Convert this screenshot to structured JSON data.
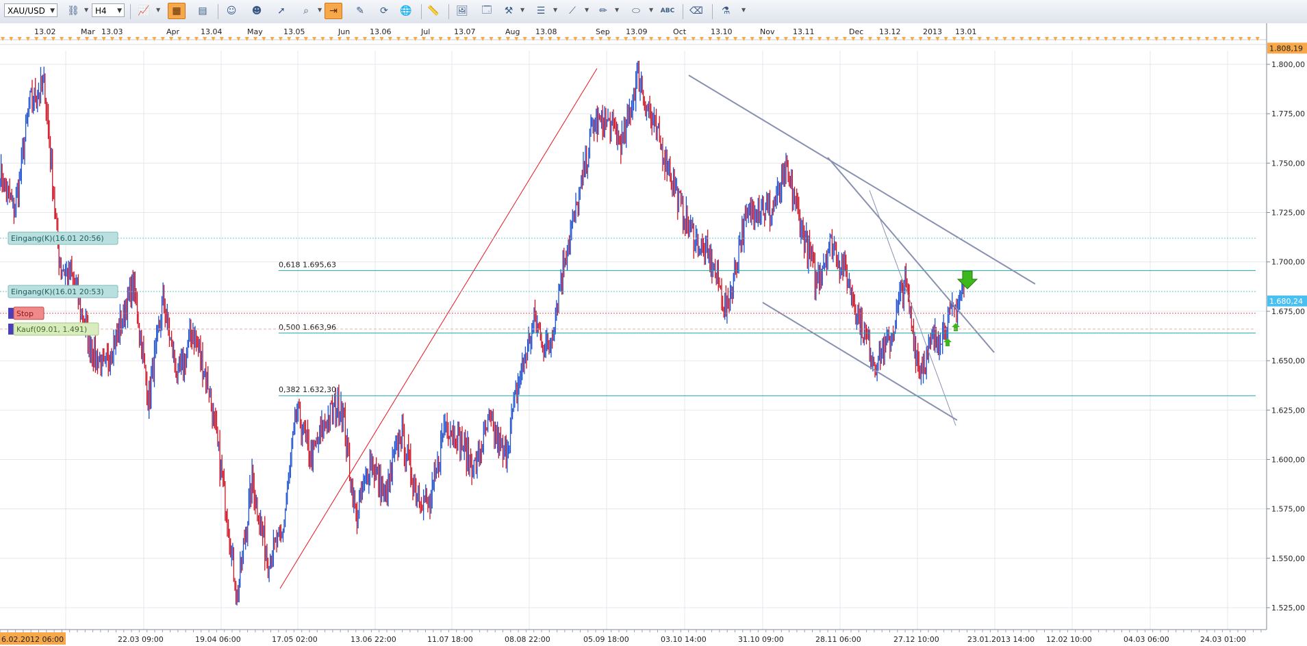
{
  "toolbar": {
    "symbol": "XAU/USD",
    "timeframe": "H4",
    "buttons": [
      "chart-type",
      "indicator",
      "indicator-2",
      "period",
      "properties",
      "zoom-in",
      "zoom-out",
      "cursor",
      "magnifier",
      "auto-scroll",
      "drawing",
      "refresh",
      "globe",
      "ruler",
      "image",
      "save-image",
      "tools",
      "lines",
      "trendline",
      "pencil",
      "ellipse",
      "abc",
      "eraser",
      "network"
    ]
  },
  "top_axis": {
    "labels": [
      {
        "text": "13.02"
      },
      {
        "text": "Mar"
      },
      {
        "text": "13.03"
      },
      {
        "text": "Apr"
      },
      {
        "text": "13.04"
      },
      {
        "text": "May"
      },
      {
        "text": "13.05"
      },
      {
        "text": "Jun"
      },
      {
        "text": "13.06"
      },
      {
        "text": "Jul"
      },
      {
        "text": "13.07"
      },
      {
        "text": "Aug"
      },
      {
        "text": "13.08"
      },
      {
        "text": "Sep"
      },
      {
        "text": "13.09"
      },
      {
        "text": "Oct"
      },
      {
        "text": "13.10"
      },
      {
        "text": "Nov"
      },
      {
        "text": "13.11"
      },
      {
        "text": "Dec"
      },
      {
        "text": "13.12"
      },
      {
        "text": "2013"
      },
      {
        "text": "13.01"
      }
    ]
  },
  "price_axis": {
    "ticks": [
      "1.800,00",
      "1.775,00",
      "1.750,00",
      "1.725,00",
      "1.700,00",
      "1.675,00",
      "1.650,00",
      "1.625,00",
      "1.600,00",
      "1.575,00",
      "1.550,00",
      "1.525,00"
    ],
    "top_label": "1.808,19",
    "current_label": "1.680,24"
  },
  "time_axis": {
    "first_label": "6.02.2012 06:00",
    "labels": [
      "22.03 09:00",
      "19.04 06:00",
      "17.05 02:00",
      "13.06 22:00",
      "11.07 18:00",
      "08.08 22:00",
      "05.09 18:00",
      "03.10 14:00",
      "31.10 09:00",
      "28.11 06:00",
      "27.12 10:00",
      "23.01.2013 14:00",
      "12.02 10:00",
      "04.03 06:00",
      "24.03 01:00"
    ]
  },
  "orders": [
    {
      "label": "Eingang(K)(16.01 20:56)",
      "price": 1712
    },
    {
      "label": "Eingang(K)(16.01 20:53)",
      "price": 1685
    },
    {
      "label": "Stop",
      "price": 1674
    },
    {
      "label": "Kauf(09.01, 1.491)",
      "price": 1666
    }
  ],
  "fibonacci": [
    {
      "label": "0,618 1.695,63",
      "price": 1695.63
    },
    {
      "label": "0,500 1.663,96",
      "price": 1663.96
    },
    {
      "label": "0,382 1.632,30",
      "price": 1632.3
    }
  ],
  "colors": {
    "up": "#1a4fd0",
    "down": "#d01020",
    "grid": "#e3e7ee",
    "fib": "#1aa7a7",
    "trend": "#8890b0",
    "current": "#49c0f0",
    "top_marker": "#f7a84b",
    "arrow": "#3cb81c"
  },
  "chart_data": {
    "type": "candlestick",
    "symbol": "XAU/USD",
    "timeframe": "H4",
    "ylim": [
      1515,
      1810
    ],
    "anchors": [
      {
        "t": "06.02.2012",
        "price": 1745
      },
      {
        "t": "13.02",
        "price": 1725
      },
      {
        "t": "20.02",
        "price": 1780
      },
      {
        "t": "28.02",
        "price": 1790
      },
      {
        "t": "29.02",
        "price": 1700
      },
      {
        "t": "08.03",
        "price": 1690
      },
      {
        "t": "14.03",
        "price": 1660
      },
      {
        "t": "22.03",
        "price": 1645
      },
      {
        "t": "28.03",
        "price": 1665
      },
      {
        "t": "02.04",
        "price": 1690
      },
      {
        "t": "05.04",
        "price": 1630
      },
      {
        "t": "13.04",
        "price": 1680
      },
      {
        "t": "19.04",
        "price": 1640
      },
      {
        "t": "27.04",
        "price": 1665
      },
      {
        "t": "03.05",
        "price": 1640
      },
      {
        "t": "09.05",
        "price": 1590
      },
      {
        "t": "16.05",
        "price": 1530
      },
      {
        "t": "21.05",
        "price": 1590
      },
      {
        "t": "25.05",
        "price": 1550
      },
      {
        "t": "30.05",
        "price": 1560
      },
      {
        "t": "04.06",
        "price": 1625
      },
      {
        "t": "08.06",
        "price": 1600
      },
      {
        "t": "13.06",
        "price": 1620
      },
      {
        "t": "19.06",
        "price": 1630
      },
      {
        "t": "25.06",
        "price": 1570
      },
      {
        "t": "29.06",
        "price": 1600
      },
      {
        "t": "05.07",
        "price": 1580
      },
      {
        "t": "10.07",
        "price": 1615
      },
      {
        "t": "13.07",
        "price": 1585
      },
      {
        "t": "19.07",
        "price": 1575
      },
      {
        "t": "24.07",
        "price": 1620
      },
      {
        "t": "27.07",
        "price": 1610
      },
      {
        "t": "02.08",
        "price": 1595
      },
      {
        "t": "08.08",
        "price": 1620
      },
      {
        "t": "14.08",
        "price": 1600
      },
      {
        "t": "21.08",
        "price": 1640
      },
      {
        "t": "24.08",
        "price": 1670
      },
      {
        "t": "30.08",
        "price": 1655
      },
      {
        "t": "05.09",
        "price": 1700
      },
      {
        "t": "10.09",
        "price": 1730
      },
      {
        "t": "14.09",
        "price": 1770
      },
      {
        "t": "21.09",
        "price": 1770
      },
      {
        "t": "25.09",
        "price": 1760
      },
      {
        "t": "04.10",
        "price": 1795
      },
      {
        "t": "09.10",
        "price": 1770
      },
      {
        "t": "16.10",
        "price": 1750
      },
      {
        "t": "22.10",
        "price": 1725
      },
      {
        "t": "26.10",
        "price": 1710
      },
      {
        "t": "31.10",
        "price": 1700
      },
      {
        "t": "02.11",
        "price": 1675
      },
      {
        "t": "06.11",
        "price": 1715
      },
      {
        "t": "12.11",
        "price": 1730
      },
      {
        "t": "19.11",
        "price": 1725
      },
      {
        "t": "26.11",
        "price": 1745
      },
      {
        "t": "30.11",
        "price": 1720
      },
      {
        "t": "05.12",
        "price": 1690
      },
      {
        "t": "10.12",
        "price": 1710
      },
      {
        "t": "14.12",
        "price": 1695
      },
      {
        "t": "18.12",
        "price": 1670
      },
      {
        "t": "21.12",
        "price": 1650
      },
      {
        "t": "28.12",
        "price": 1660
      },
      {
        "t": "02.01",
        "price": 1690
      },
      {
        "t": "04.01",
        "price": 1645
      },
      {
        "t": "09.01",
        "price": 1660
      },
      {
        "t": "14.01",
        "price": 1670
      },
      {
        "t": "18.01",
        "price": 1685
      }
    ]
  }
}
